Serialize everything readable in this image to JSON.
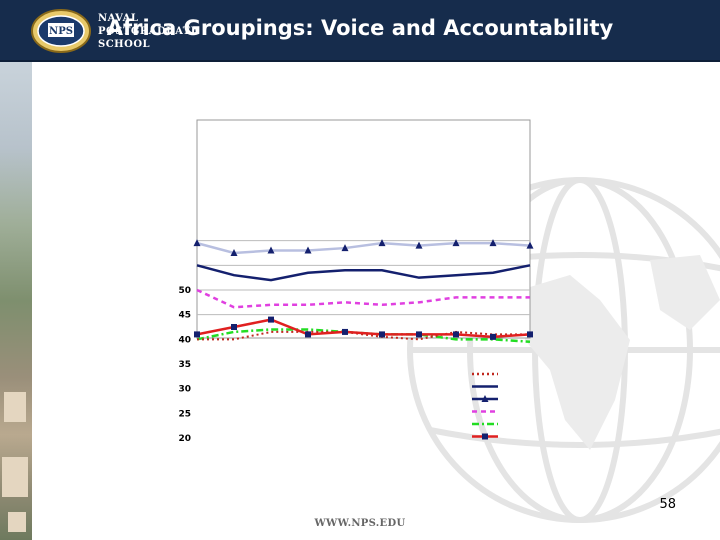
{
  "header": {
    "title": "Africa Groupings: Voice and Accountability",
    "org_lines": [
      "NAVAL",
      "POSTGRADUATE",
      "SCHOOL"
    ],
    "logo_text": "NPS"
  },
  "footer": {
    "url": "WWW.NPS.EDU",
    "page_number": "58"
  },
  "colors": {
    "header_bg": "#162c4c",
    "series_dark_red": "#c0281e",
    "series_navy": "#14206e",
    "series_lavender": "#b8bfe0",
    "series_magenta": "#e040e0",
    "series_green": "#22dd22",
    "series_red": "#e02020"
  },
  "chart_data": {
    "type": "line",
    "y_tick_labels": [
      "50",
      "45",
      "40",
      "35",
      "30",
      "25",
      "20"
    ],
    "ylim": [
      20,
      60
    ],
    "x_count": 10,
    "series": [
      {
        "values": [
          59.5,
          57.5,
          58.0,
          58.0,
          58.5,
          59.5,
          59.0,
          59.5,
          59.5,
          59.0
        ],
        "color": "#b8bfe0",
        "style": "solid-triangle"
      },
      {
        "values": [
          55.0,
          53.0,
          52.0,
          53.5,
          54.0,
          54.0,
          52.5,
          53.0,
          53.5,
          55.0
        ],
        "color": "#14206e",
        "style": "solid"
      },
      {
        "values": [
          50.0,
          46.5,
          47.0,
          47.0,
          47.5,
          47.0,
          47.5,
          48.5,
          48.5,
          48.5
        ],
        "color": "#e040e0",
        "style": "dash"
      },
      {
        "values": [
          40.0,
          41.5,
          42.0,
          42.0,
          41.5,
          41.0,
          41.0,
          40.0,
          40.0,
          39.5
        ],
        "color": "#22dd22",
        "style": "dashdot"
      },
      {
        "values": [
          40.0,
          40.0,
          41.5,
          41.5,
          41.5,
          40.5,
          40.0,
          41.5,
          41.0,
          41.0
        ],
        "color": "#c0281e",
        "style": "dot"
      },
      {
        "values": [
          41.0,
          42.5,
          44.0,
          41.0,
          41.5,
          41.0,
          41.0,
          41.0,
          40.5,
          41.0
        ],
        "color": "#e02020",
        "style": "solid-square"
      }
    ],
    "legend_placement": "bottom-right"
  }
}
